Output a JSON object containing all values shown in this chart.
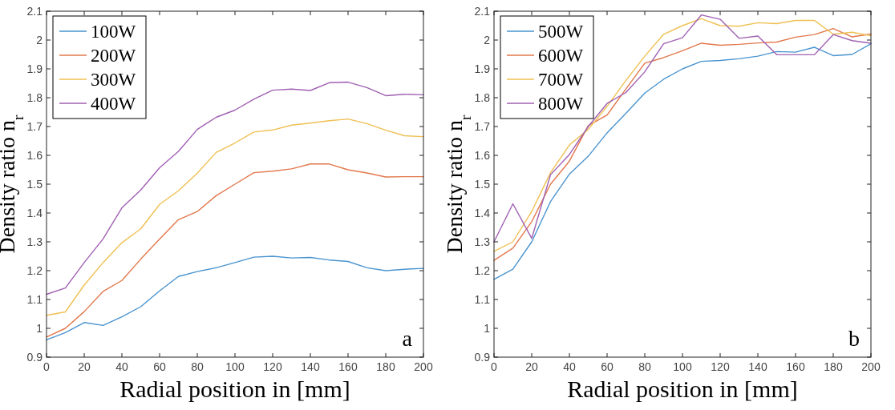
{
  "chart_data": [
    {
      "type": "line",
      "xlabel": "Radial position in [mm]",
      "ylabel": "Density ratio n$_{r}$",
      "annotations": [
        "a"
      ],
      "x": [
        0,
        10,
        20,
        30,
        40,
        50,
        60,
        70,
        80,
        90,
        100,
        110,
        120,
        130,
        140,
        150,
        160,
        170,
        180,
        190,
        200
      ],
      "xlim": [
        0,
        200
      ],
      "xticks": [
        0,
        20,
        40,
        60,
        80,
        100,
        120,
        140,
        160,
        180,
        200
      ],
      "ylim": [
        0.9,
        2.1
      ],
      "yticks": [
        0.9,
        1,
        1.1,
        1.2,
        1.3,
        1.4,
        1.5,
        1.6,
        1.7,
        1.8,
        1.9,
        2,
        2.1
      ],
      "grid": false,
      "legend": "top left",
      "marker": "none",
      "line_style": "solid",
      "series": [
        {
          "name": "100W",
          "color": "#4a94cf",
          "values": [
            0.96,
            0.985,
            1.02,
            1.01,
            1.04,
            1.075,
            1.13,
            1.18,
            1.197,
            1.21,
            1.228,
            1.247,
            1.25,
            1.244,
            1.246,
            1.237,
            1.232,
            1.21,
            1.2,
            1.205,
            1.208
          ]
        },
        {
          "name": "200W",
          "color": "#e2784c",
          "values": [
            0.97,
            1.0,
            1.058,
            1.128,
            1.166,
            1.24,
            1.31,
            1.377,
            1.405,
            1.46,
            1.5,
            1.54,
            1.545,
            1.553,
            1.57,
            1.57,
            1.55,
            1.539,
            1.525,
            1.526,
            1.526
          ]
        },
        {
          "name": "300W",
          "color": "#efc052",
          "values": [
            1.045,
            1.057,
            1.15,
            1.228,
            1.297,
            1.345,
            1.43,
            1.477,
            1.538,
            1.61,
            1.643,
            1.681,
            1.688,
            1.705,
            1.712,
            1.72,
            1.726,
            1.71,
            1.687,
            1.668,
            1.665
          ]
        },
        {
          "name": "400W",
          "color": "#a060b2",
          "values": [
            1.118,
            1.14,
            1.228,
            1.31,
            1.418,
            1.48,
            1.557,
            1.614,
            1.69,
            1.732,
            1.757,
            1.795,
            1.826,
            1.83,
            1.825,
            1.852,
            1.854,
            1.835,
            1.807,
            1.812,
            1.81
          ]
        }
      ]
    },
    {
      "type": "line",
      "xlabel": "Radial position in [mm]",
      "ylabel": "Density ratio n$_{r}$",
      "annotations": [
        "b"
      ],
      "x": [
        0,
        10,
        20,
        30,
        40,
        50,
        60,
        70,
        80,
        90,
        100,
        110,
        120,
        130,
        140,
        150,
        160,
        170,
        180,
        190,
        200
      ],
      "xlim": [
        0,
        200
      ],
      "xticks": [
        0,
        20,
        40,
        60,
        80,
        100,
        120,
        140,
        160,
        180,
        200
      ],
      "ylim": [
        0.9,
        2.1
      ],
      "yticks": [
        0.9,
        1,
        1.1,
        1.2,
        1.3,
        1.4,
        1.5,
        1.6,
        1.7,
        1.8,
        1.9,
        2,
        2.1
      ],
      "grid": false,
      "legend": "top left",
      "marker": "none",
      "line_style": "solid",
      "series": [
        {
          "name": "500W",
          "color": "#4a94cf",
          "values": [
            1.17,
            1.205,
            1.3,
            1.44,
            1.535,
            1.597,
            1.678,
            1.746,
            1.816,
            1.864,
            1.9,
            1.926,
            1.929,
            1.935,
            1.944,
            1.96,
            1.958,
            1.975,
            1.946,
            1.95,
            1.987
          ]
        },
        {
          "name": "600W",
          "color": "#e2784c",
          "values": [
            1.236,
            1.278,
            1.37,
            1.5,
            1.58,
            1.703,
            1.74,
            1.83,
            1.92,
            1.939,
            1.963,
            1.989,
            1.982,
            1.985,
            1.99,
            1.993,
            2.01,
            2.019,
            2.04,
            2.011,
            2.021
          ]
        },
        {
          "name": "700W",
          "color": "#efc052",
          "values": [
            1.267,
            1.3,
            1.405,
            1.54,
            1.636,
            1.69,
            1.77,
            1.86,
            1.944,
            2.02,
            2.05,
            2.074,
            2.05,
            2.048,
            2.06,
            2.057,
            2.068,
            2.068,
            2.02,
            2.027,
            2.015
          ]
        },
        {
          "name": "800W",
          "color": "#a060b2",
          "values": [
            1.3,
            1.432,
            1.312,
            1.533,
            1.603,
            1.7,
            1.78,
            1.818,
            1.89,
            1.987,
            2.008,
            2.087,
            2.072,
            2.006,
            2.014,
            1.949,
            1.949,
            1.949,
            2.019,
            1.998,
            1.989
          ]
        }
      ]
    }
  ]
}
